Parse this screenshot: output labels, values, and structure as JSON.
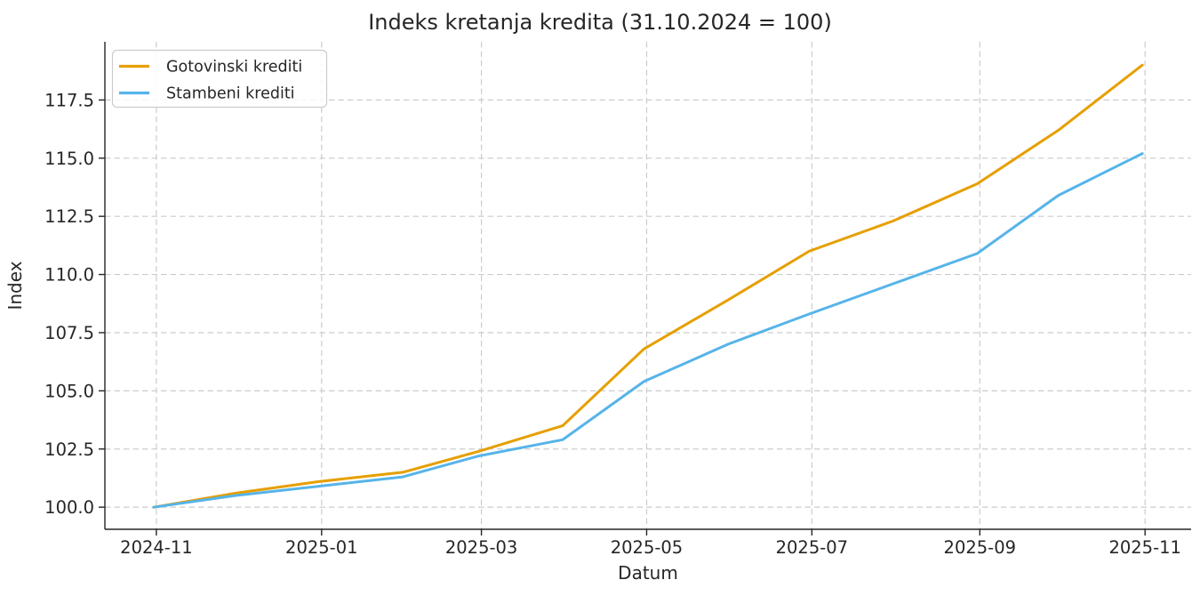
{
  "chart_data": {
    "type": "line",
    "title": "Indeks kretanja kredita (31.10.2024 = 100)",
    "xlabel": "Datum",
    "ylabel": "Index",
    "grid": true,
    "legend_position": "upper left",
    "xlim": [
      "2024-10-13",
      "2025-11-18"
    ],
    "ylim": [
      99.05,
      120.0
    ],
    "x_dates": [
      "2024-10-31",
      "2024-11-30",
      "2024-12-31",
      "2025-01-31",
      "2025-02-28",
      "2025-03-31",
      "2025-04-30",
      "2025-05-31",
      "2025-06-30",
      "2025-07-31",
      "2025-08-31",
      "2025-09-30",
      "2025-10-31"
    ],
    "series": [
      {
        "name": "Gotovinski krediti",
        "color": "#E69F00",
        "values": [
          100.0,
          100.6,
          101.1,
          101.5,
          102.4,
          103.5,
          106.8,
          108.9,
          111.0,
          112.3,
          113.9,
          116.2,
          119.0
        ]
      },
      {
        "name": "Stambeni krediti",
        "color": "#56B4E9",
        "values": [
          100.0,
          100.5,
          100.9,
          101.3,
          102.2,
          102.9,
          105.4,
          107.0,
          108.3,
          109.6,
          110.9,
          113.4,
          115.2
        ]
      }
    ],
    "x_ticks": [
      {
        "date": "2024-11-01",
        "label": "2024-11"
      },
      {
        "date": "2025-01-01",
        "label": "2025-01"
      },
      {
        "date": "2025-03-01",
        "label": "2025-03"
      },
      {
        "date": "2025-05-01",
        "label": "2025-05"
      },
      {
        "date": "2025-07-01",
        "label": "2025-07"
      },
      {
        "date": "2025-09-01",
        "label": "2025-09"
      },
      {
        "date": "2025-11-01",
        "label": "2025-11"
      }
    ],
    "y_ticks": [
      100.0,
      102.5,
      105.0,
      107.5,
      110.0,
      112.5,
      115.0,
      117.5
    ],
    "y_tick_labels": [
      "100.0",
      "102.5",
      "105.0",
      "107.5",
      "110.0",
      "112.5",
      "115.0",
      "117.5"
    ]
  }
}
